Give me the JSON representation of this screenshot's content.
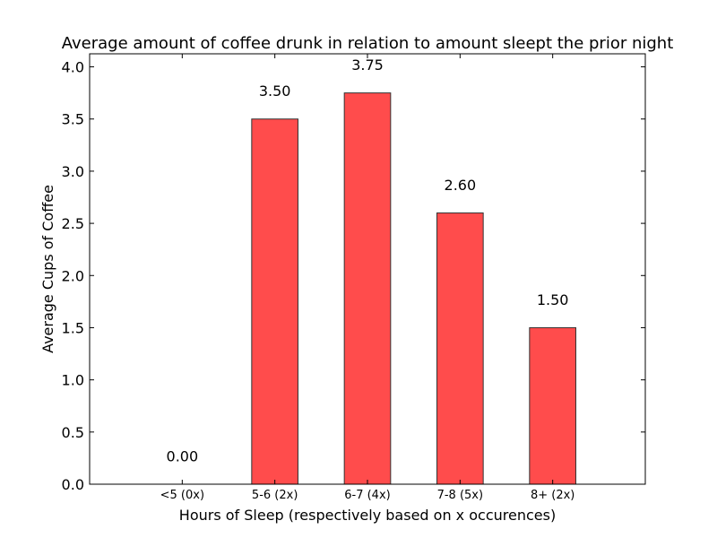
{
  "chart_data": {
    "type": "bar",
    "title": "Average amount of coffee drunk in relation to amount sleept the prior night",
    "xlabel": "Hours of Sleep (respectively based on x occurences)",
    "ylabel": "Average Cups of Coffee",
    "categories": [
      "<5 (0x)",
      "5-6 (2x)",
      "6-7 (4x)",
      "7-8 (5x)",
      "8+ (2x)"
    ],
    "values": [
      0.0,
      3.5,
      3.75,
      2.6,
      1.5
    ],
    "value_labels": [
      "0.00",
      "3.50",
      "3.75",
      "2.60",
      "1.50"
    ],
    "ylim": [
      0,
      4.125
    ],
    "yticks": [
      0.0,
      0.5,
      1.0,
      1.5,
      2.0,
      2.5,
      3.0,
      3.5,
      4.0
    ],
    "ytick_labels": [
      "0.0",
      "0.5",
      "1.0",
      "1.5",
      "2.0",
      "2.5",
      "3.0",
      "3.5",
      "4.0"
    ],
    "grid": false,
    "bar_color": "#ff4c4c",
    "bar_edge_color": "#333333"
  }
}
